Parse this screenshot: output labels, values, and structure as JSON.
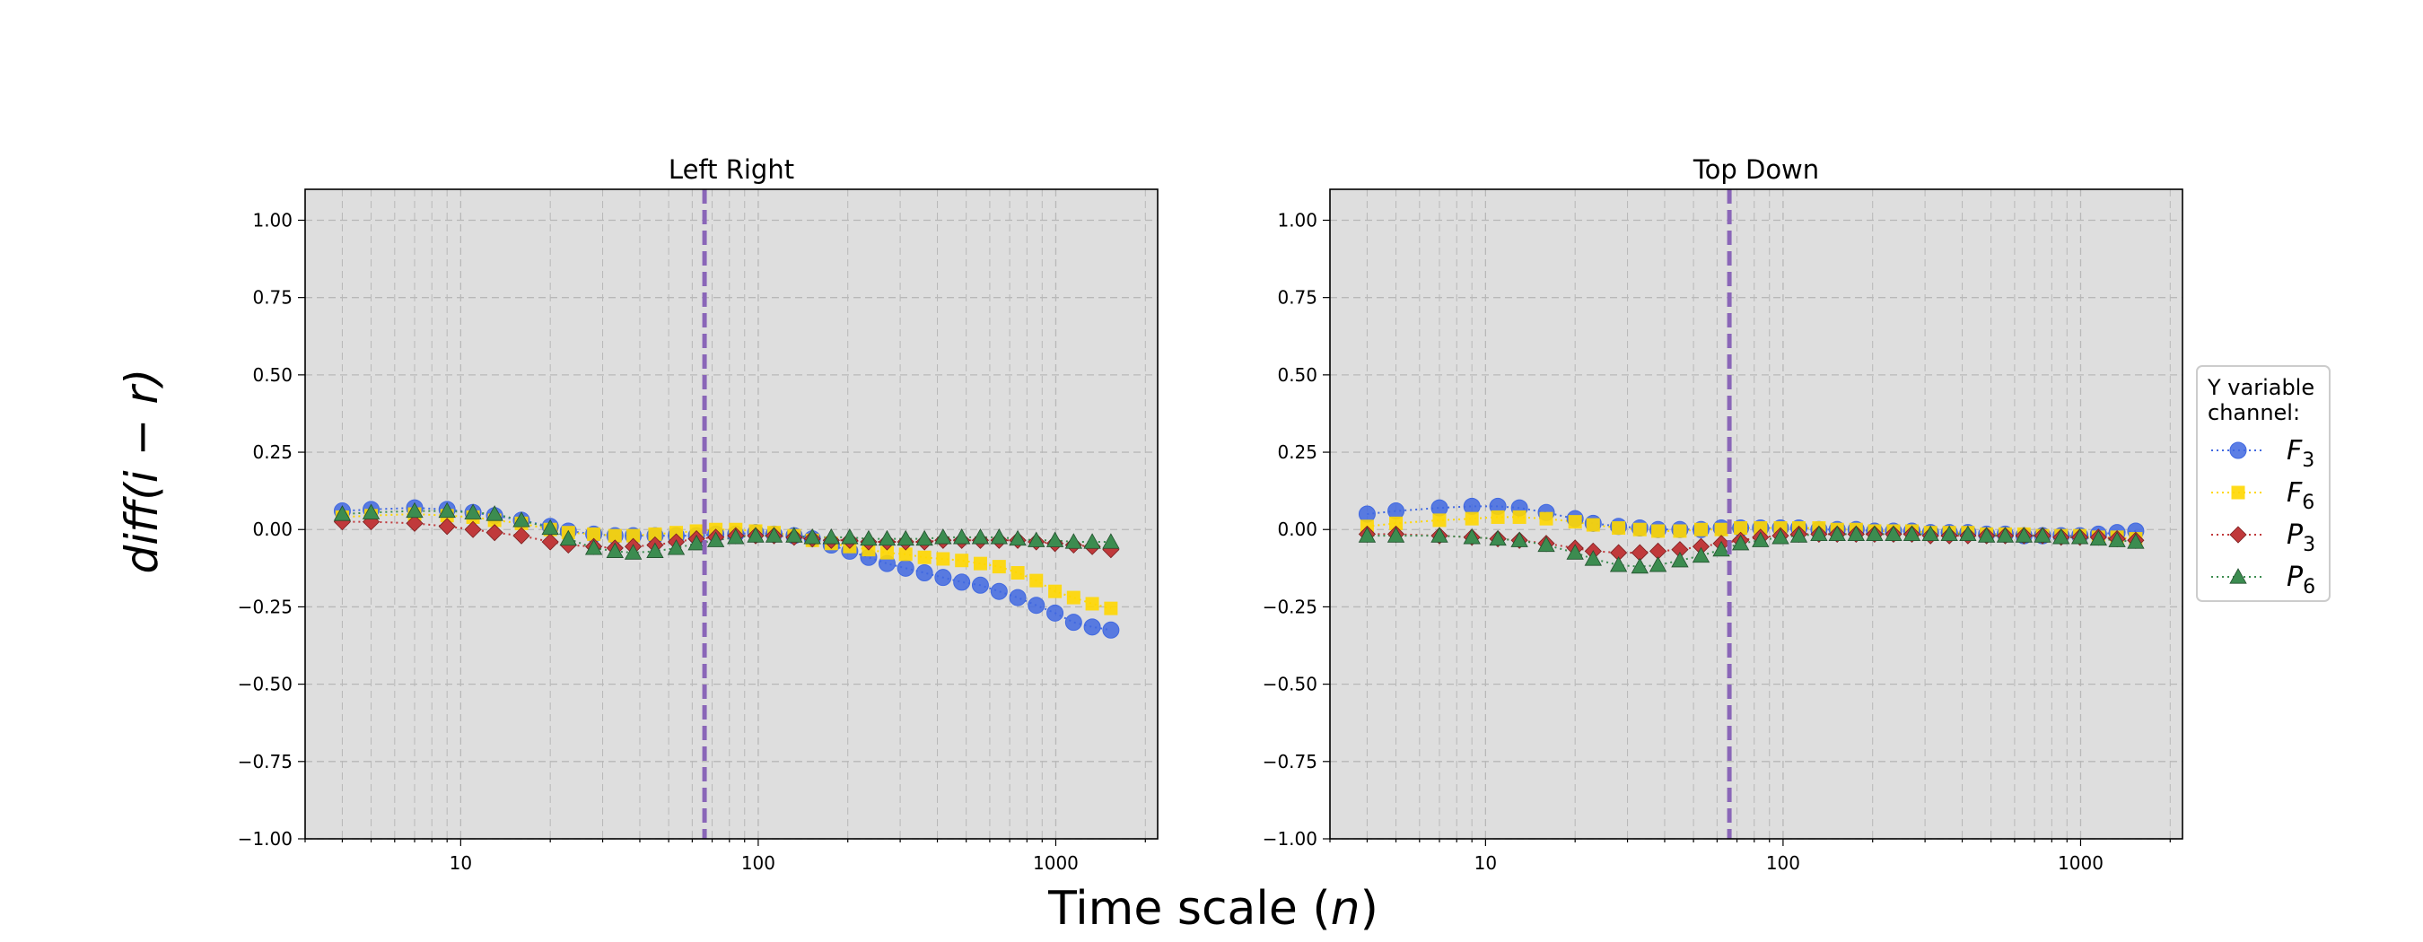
{
  "figure": {
    "xlabel": "Time scale (n)",
    "ylabel": "diff(i − r)"
  },
  "legend": {
    "title_line1": "Y variable",
    "title_line2": "channel:",
    "entries": [
      {
        "base": "F",
        "sub": "3"
      },
      {
        "base": "F",
        "sub": "6"
      },
      {
        "base": "P",
        "sub": "3"
      },
      {
        "base": "P",
        "sub": "6"
      }
    ]
  },
  "chart_data": [
    {
      "type": "scatter",
      "title": "Left Right",
      "xscale": "log",
      "xlim": [
        3.0,
        2200
      ],
      "ylim": [
        -1.0,
        1.1
      ],
      "xticks": [
        10,
        100,
        1000
      ],
      "yticks": [
        -1.0,
        -0.75,
        -0.5,
        -0.25,
        0.0,
        0.25,
        0.5,
        0.75,
        1.0
      ],
      "grid": true,
      "vline": 66,
      "x": [
        4,
        5,
        7,
        9,
        11,
        13,
        16,
        20,
        23,
        28,
        33,
        38,
        45,
        53,
        62,
        72,
        84,
        98,
        113,
        132,
        152,
        176,
        203,
        235,
        271,
        313,
        362,
        418,
        483,
        558,
        645,
        745,
        860,
        994,
        1148,
        1326,
        1532
      ],
      "series": [
        {
          "name": "F3",
          "color": "#4169E1",
          "marker": "circle",
          "values": [
            0.06,
            0.065,
            0.07,
            0.065,
            0.055,
            0.045,
            0.03,
            0.01,
            -0.005,
            -0.015,
            -0.02,
            -0.02,
            -0.02,
            -0.02,
            -0.02,
            -0.015,
            -0.015,
            -0.01,
            -0.015,
            -0.02,
            -0.03,
            -0.05,
            -0.07,
            -0.09,
            -0.11,
            -0.125,
            -0.14,
            -0.155,
            -0.17,
            -0.18,
            -0.2,
            -0.22,
            -0.245,
            -0.27,
            -0.3,
            -0.315,
            -0.325
          ]
        },
        {
          "name": "F6",
          "color": "#FFD700",
          "marker": "square",
          "values": [
            0.04,
            0.045,
            0.05,
            0.045,
            0.04,
            0.03,
            0.02,
            0.0,
            -0.01,
            -0.015,
            -0.02,
            -0.02,
            -0.015,
            -0.01,
            -0.005,
            0.0,
            0.0,
            -0.005,
            -0.01,
            -0.02,
            -0.035,
            -0.045,
            -0.055,
            -0.065,
            -0.075,
            -0.08,
            -0.09,
            -0.095,
            -0.1,
            -0.11,
            -0.12,
            -0.14,
            -0.165,
            -0.2,
            -0.22,
            -0.24,
            -0.255
          ]
        },
        {
          "name": "P3",
          "color": "#C0393B",
          "marker": "diamond",
          "values": [
            0.025,
            0.025,
            0.02,
            0.01,
            0.0,
            -0.01,
            -0.02,
            -0.04,
            -0.05,
            -0.055,
            -0.06,
            -0.055,
            -0.05,
            -0.04,
            -0.03,
            -0.025,
            -0.02,
            -0.02,
            -0.02,
            -0.025,
            -0.03,
            -0.035,
            -0.035,
            -0.04,
            -0.04,
            -0.04,
            -0.04,
            -0.035,
            -0.035,
            -0.035,
            -0.035,
            -0.035,
            -0.04,
            -0.045,
            -0.05,
            -0.055,
            -0.065
          ]
        },
        {
          "name": "P6",
          "color": "#3C8C50",
          "marker": "triangle",
          "values": [
            0.05,
            0.055,
            0.06,
            0.06,
            0.055,
            0.05,
            0.03,
            0.005,
            -0.03,
            -0.06,
            -0.07,
            -0.075,
            -0.07,
            -0.06,
            -0.045,
            -0.035,
            -0.025,
            -0.02,
            -0.02,
            -0.02,
            -0.025,
            -0.025,
            -0.025,
            -0.03,
            -0.03,
            -0.03,
            -0.03,
            -0.025,
            -0.025,
            -0.025,
            -0.025,
            -0.03,
            -0.035,
            -0.035,
            -0.04,
            -0.04,
            -0.04
          ]
        }
      ]
    },
    {
      "type": "scatter",
      "title": "Top Down",
      "xscale": "log",
      "xlim": [
        3.0,
        2200
      ],
      "ylim": [
        -1.0,
        1.1
      ],
      "xticks": [
        10,
        100,
        1000
      ],
      "yticks": [
        -1.0,
        -0.75,
        -0.5,
        -0.25,
        0.0,
        0.25,
        0.5,
        0.75,
        1.0
      ],
      "grid": true,
      "vline": 66,
      "x": [
        4,
        5,
        7,
        9,
        11,
        13,
        16,
        20,
        23,
        28,
        33,
        38,
        45,
        53,
        62,
        72,
        84,
        98,
        113,
        132,
        152,
        176,
        203,
        235,
        271,
        313,
        362,
        418,
        483,
        558,
        645,
        745,
        860,
        994,
        1148,
        1326,
        1532
      ],
      "series": [
        {
          "name": "F3",
          "color": "#4169E1",
          "marker": "circle",
          "values": [
            0.05,
            0.06,
            0.07,
            0.075,
            0.075,
            0.07,
            0.055,
            0.035,
            0.02,
            0.01,
            0.005,
            0.0,
            0.0,
            0.0,
            0.005,
            0.005,
            0.005,
            0.005,
            0.005,
            0.0,
            0.0,
            0.0,
            -0.005,
            -0.005,
            -0.005,
            -0.01,
            -0.01,
            -0.01,
            -0.015,
            -0.015,
            -0.02,
            -0.02,
            -0.02,
            -0.02,
            -0.015,
            -0.01,
            -0.005
          ]
        },
        {
          "name": "F6",
          "color": "#FFD700",
          "marker": "square",
          "values": [
            0.01,
            0.02,
            0.03,
            0.035,
            0.04,
            0.04,
            0.035,
            0.025,
            0.015,
            0.005,
            0.0,
            -0.005,
            -0.005,
            0.0,
            0.0,
            0.005,
            0.005,
            0.005,
            0.005,
            0.005,
            0.0,
            0.0,
            -0.005,
            -0.005,
            -0.005,
            -0.01,
            -0.01,
            -0.01,
            -0.015,
            -0.015,
            -0.015,
            -0.02,
            -0.02,
            -0.02,
            -0.025,
            -0.025,
            -0.03
          ]
        },
        {
          "name": "P3",
          "color": "#C0393B",
          "marker": "diamond",
          "values": [
            -0.015,
            -0.015,
            -0.02,
            -0.025,
            -0.03,
            -0.035,
            -0.045,
            -0.06,
            -0.07,
            -0.075,
            -0.075,
            -0.07,
            -0.065,
            -0.055,
            -0.045,
            -0.035,
            -0.025,
            -0.02,
            -0.015,
            -0.015,
            -0.015,
            -0.015,
            -0.015,
            -0.015,
            -0.015,
            -0.02,
            -0.02,
            -0.02,
            -0.02,
            -0.02,
            -0.02,
            -0.02,
            -0.025,
            -0.025,
            -0.025,
            -0.03,
            -0.035
          ]
        },
        {
          "name": "P6",
          "color": "#3C8C50",
          "marker": "triangle",
          "values": [
            -0.02,
            -0.02,
            -0.02,
            -0.025,
            -0.03,
            -0.035,
            -0.05,
            -0.075,
            -0.095,
            -0.115,
            -0.12,
            -0.115,
            -0.1,
            -0.085,
            -0.065,
            -0.045,
            -0.035,
            -0.025,
            -0.02,
            -0.015,
            -0.015,
            -0.015,
            -0.015,
            -0.015,
            -0.015,
            -0.015,
            -0.015,
            -0.015,
            -0.02,
            -0.02,
            -0.02,
            -0.02,
            -0.025,
            -0.025,
            -0.03,
            -0.035,
            -0.04
          ]
        }
      ]
    }
  ]
}
